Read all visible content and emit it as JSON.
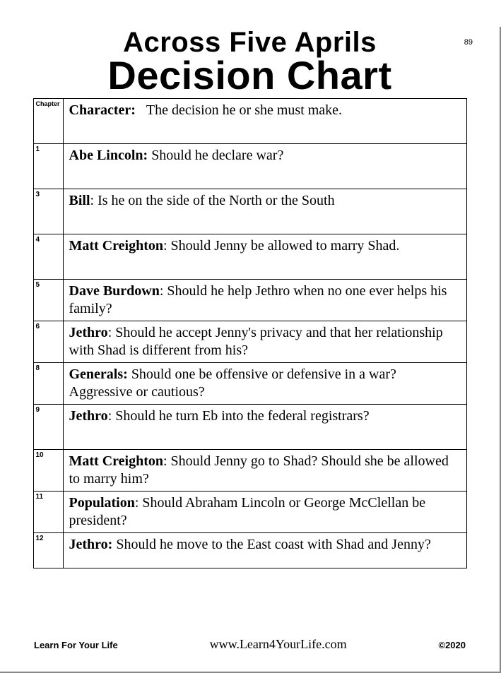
{
  "page_number": "89",
  "title_line1": "Across Five Aprils",
  "title_line2": "Decision Chart",
  "header_chapter_label": "Chapter",
  "header_character_label": "Character:",
  "header_decision_text": "The decision he or she must make.",
  "rows": [
    {
      "chapter": "1",
      "name": "Abe Lincoln:",
      "sep": "  ",
      "decision": "Should he declare war?"
    },
    {
      "chapter": "3",
      "name": "Bill",
      "sep": ": ",
      "decision": "Is he on the side of the North or the South"
    },
    {
      "chapter": "4",
      "name": "Matt Creighton",
      "sep": ":  ",
      "decision": "Should Jenny be allowed to marry Shad."
    },
    {
      "chapter": "5",
      "name": "Dave Burdown",
      "sep": ":  ",
      "decision": "Should he help Jethro when no one ever helps his family?"
    },
    {
      "chapter": "6",
      "name": "Jethro",
      "sep": ": ",
      "decision": "Should he accept Jenny's privacy and that her relationship with Shad is different from his?"
    },
    {
      "chapter": "8",
      "name": "Generals:",
      "sep": "  ",
      "decision": "Should one be offensive or defensive in a war? Aggressive or cautious?"
    },
    {
      "chapter": "9",
      "name": "Jethro",
      "sep": ":  ",
      "decision": "Should he turn Eb into the federal registrars?"
    },
    {
      "chapter": "10",
      "name": "Matt Creighton",
      "sep": ":  ",
      "decision": "Should Jenny go to Shad?  Should she be allowed to marry him?"
    },
    {
      "chapter": "11",
      "name": "Population",
      "sep": ":  ",
      "decision": "Should Abraham Lincoln or George McClellan be president?"
    },
    {
      "chapter": "12",
      "name": "Jethro:",
      "sep": "  ",
      "decision": "Should he move to the East coast with Shad and Jenny?"
    }
  ],
  "row_heights": [
    "tall",
    "tall",
    "tall",
    "short",
    "short",
    "short",
    "tall",
    "short",
    "short",
    "short"
  ],
  "footer_left": "Learn For Your Life",
  "footer_center": "www.Learn4YourLife.com",
  "footer_right": "©2020"
}
